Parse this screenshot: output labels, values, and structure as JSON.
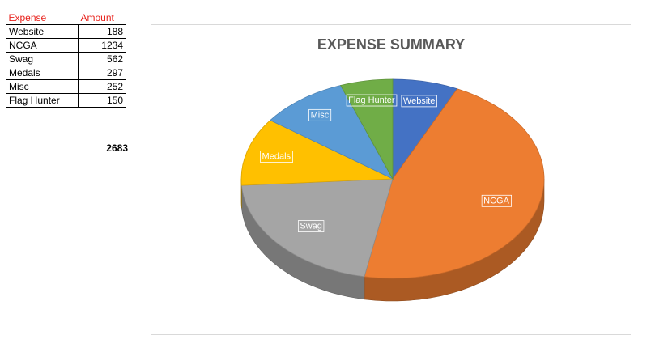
{
  "table": {
    "headers": [
      "Expense",
      "Amount"
    ],
    "rows": [
      [
        "Website",
        "188"
      ],
      [
        "NCGA",
        "1234"
      ],
      [
        "Swag",
        "562"
      ],
      [
        "Medals",
        "297"
      ],
      [
        "Misc",
        "252"
      ],
      [
        "Flag Hunter",
        "150"
      ]
    ],
    "total": "2683"
  },
  "chart_data": {
    "type": "pie",
    "title": "EXPENSE SUMMARY",
    "three_d": true,
    "categories": [
      "Website",
      "NCGA",
      "Swag",
      "Medals",
      "Misc",
      "Flag Hunter"
    ],
    "values": [
      188,
      1234,
      562,
      297,
      252,
      150
    ],
    "colors": [
      "#4472c4",
      "#ed7d31",
      "#a5a5a5",
      "#ffc000",
      "#5b9bd5",
      "#70ad47"
    ],
    "legend": "none",
    "data_labels": "category name"
  }
}
